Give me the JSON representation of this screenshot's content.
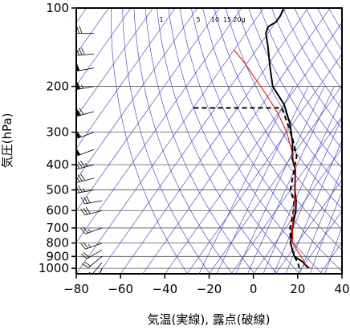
{
  "chart_data": {
    "type": "line",
    "title": "",
    "xlabel": "気温(実線), 露点(破線)",
    "ylabel": "気圧(hPa)",
    "xlim": [
      -80,
      40
    ],
    "ylim_hpa": [
      1050,
      100
    ],
    "y_scale": "log",
    "x_ticks": [
      "−80",
      "−60",
      "−40",
      "−20",
      "0",
      "20",
      "40"
    ],
    "x_tick_values": [
      -80,
      -60,
      -40,
      -20,
      0,
      20,
      40
    ],
    "y_ticks": [
      "100",
      "200",
      "300",
      "400",
      "500",
      "600",
      "700",
      "800",
      "900",
      "1000"
    ],
    "y_tick_values": [
      100,
      200,
      300,
      400,
      500,
      600,
      700,
      800,
      900,
      1000
    ],
    "mixing_ratio_labels": [
      "1",
      "5",
      "10",
      "15",
      "20g"
    ],
    "mixing_ratio_values": [
      1,
      5,
      10,
      15,
      20
    ],
    "series": [
      {
        "kind": "temperature",
        "style": "solid",
        "color": "#000000",
        "points": [
          [
            23,
            1000
          ],
          [
            19,
            950
          ],
          [
            13,
            900
          ],
          [
            10,
            850
          ],
          [
            7,
            800
          ],
          [
            3,
            700
          ],
          [
            -1,
            600
          ],
          [
            -4,
            550
          ],
          [
            -8,
            500
          ],
          [
            -14,
            420
          ],
          [
            -19,
            380
          ],
          [
            -24,
            330
          ],
          [
            -31,
            280
          ],
          [
            -40,
            235
          ],
          [
            -51,
            200
          ],
          [
            -58,
            170
          ],
          [
            -66,
            140
          ],
          [
            -71,
            125
          ],
          [
            -72,
            118
          ],
          [
            -70,
            113
          ],
          [
            -70,
            107
          ],
          [
            -71,
            100
          ]
        ]
      },
      {
        "kind": "dew_point",
        "style": "dashed",
        "color": "#000000",
        "points": [
          [
            19,
            1000
          ],
          [
            17,
            960
          ],
          [
            13,
            900
          ],
          [
            10,
            850
          ],
          [
            7,
            800
          ],
          [
            2,
            700
          ],
          [
            -2,
            600
          ],
          [
            -5,
            550
          ],
          [
            -10,
            500
          ],
          [
            -14,
            430
          ],
          [
            -18,
            370
          ],
          [
            -25,
            320
          ],
          [
            -33,
            275
          ],
          [
            -40,
            242
          ],
          [
            -80,
            242
          ]
        ]
      },
      {
        "kind": "reference_profile",
        "style": "solid",
        "color": "#ff0000",
        "points": [
          [
            24,
            1000
          ],
          [
            20,
            960
          ],
          [
            16,
            900
          ],
          [
            12,
            850
          ],
          [
            8,
            800
          ],
          [
            3,
            700
          ],
          [
            -2,
            600
          ],
          [
            -8,
            500
          ],
          [
            -14,
            420
          ],
          [
            -21,
            360
          ],
          [
            -30,
            300
          ],
          [
            -41,
            250
          ],
          [
            -53,
            210
          ],
          [
            -64,
            180
          ],
          [
            -70,
            165
          ],
          [
            -80,
            145
          ]
        ]
      }
    ],
    "wind_barbs": {
      "color": "#000000",
      "levels": [
        {
          "p": 1000,
          "dir": 200,
          "spd": 10
        },
        {
          "p": 950,
          "dir": 220,
          "spd": 15
        },
        {
          "p": 900,
          "dir": 230,
          "spd": 20
        },
        {
          "p": 850,
          "dir": 240,
          "spd": 20
        },
        {
          "p": 800,
          "dir": 250,
          "spd": 25
        },
        {
          "p": 700,
          "dir": 250,
          "spd": 25
        },
        {
          "p": 600,
          "dir": 255,
          "spd": 30
        },
        {
          "p": 550,
          "dir": 260,
          "spd": 30
        },
        {
          "p": 500,
          "dir": 260,
          "spd": 35
        },
        {
          "p": 450,
          "dir": 255,
          "spd": 40
        },
        {
          "p": 400,
          "dir": 255,
          "spd": 45
        },
        {
          "p": 350,
          "dir": 250,
          "spd": 50
        },
        {
          "p": 300,
          "dir": 250,
          "spd": 60
        },
        {
          "p": 250,
          "dir": 255,
          "spd": 70
        },
        {
          "p": 200,
          "dir": 260,
          "spd": 65
        },
        {
          "p": 170,
          "dir": 260,
          "spd": 50
        },
        {
          "p": 150,
          "dir": 265,
          "spd": 40
        },
        {
          "p": 125,
          "dir": 270,
          "spd": 30
        },
        {
          "p": 100,
          "dir": 270,
          "spd": 20
        }
      ]
    },
    "grid": true,
    "skew": true,
    "background_line_color": "#3333cc"
  }
}
